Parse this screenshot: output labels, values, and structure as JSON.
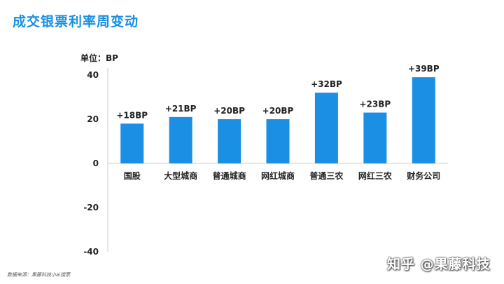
{
  "page": {
    "title": "成交银票利率周变动",
    "unit_label": "单位：BP",
    "source": "数据来源：果藤科技小ai搜票",
    "watermark": "知乎 @果藤科技"
  },
  "colors": {
    "title": "#1a8fe3",
    "bar": "#1a8fe3",
    "text": "#222222"
  },
  "chart_data": {
    "type": "bar",
    "categories": [
      "国股",
      "大型城商",
      "普通城商",
      "网红城商",
      "普通三农",
      "网红三农",
      "财务公司"
    ],
    "values": [
      18,
      21,
      20,
      20,
      32,
      23,
      39
    ],
    "data_labels": [
      "+18BP",
      "+21BP",
      "+20BP",
      "+20BP",
      "+32BP",
      "+23BP",
      "+39BP"
    ],
    "ylim": [
      -40,
      40
    ],
    "yticks": [
      40,
      20,
      0,
      -20,
      -40
    ],
    "grid": false,
    "legend": "none"
  }
}
